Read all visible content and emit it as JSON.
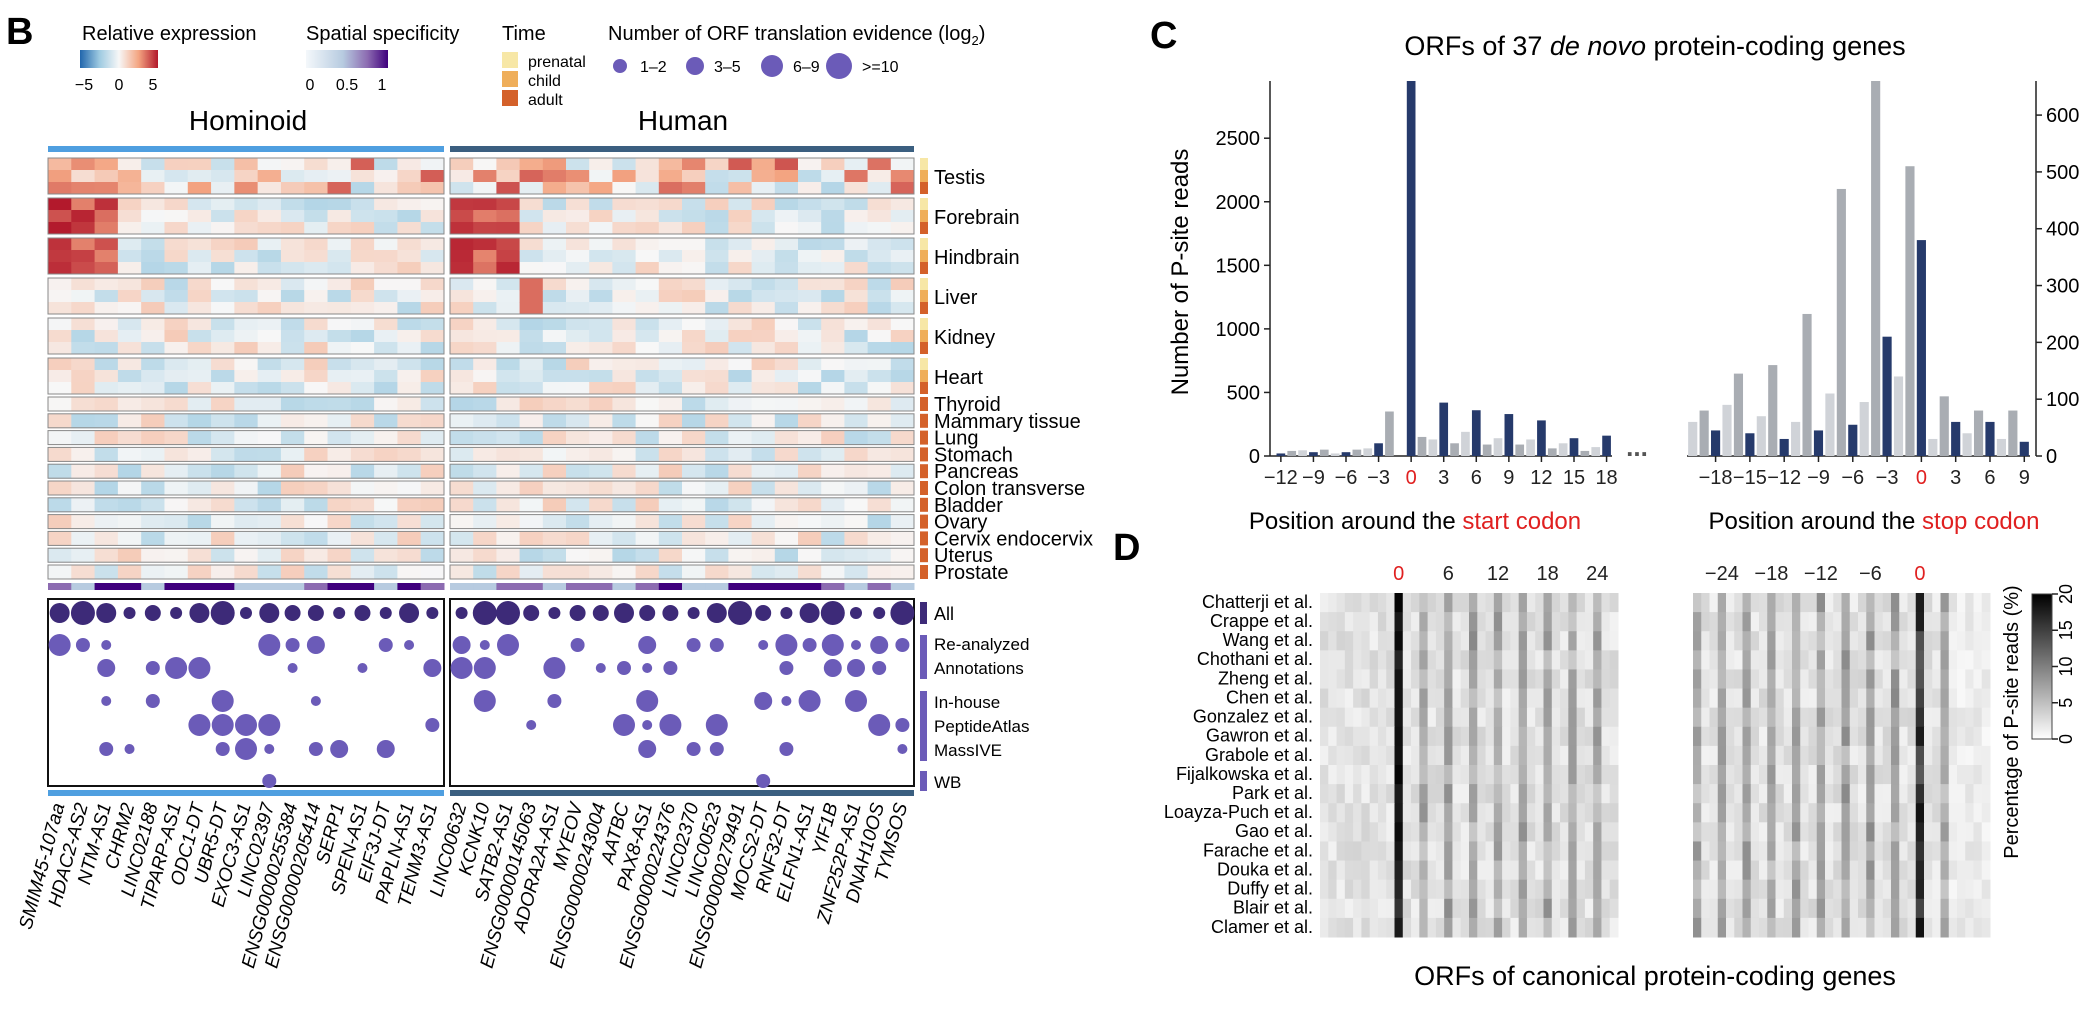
{
  "panels": {
    "B": "B",
    "C": "C",
    "D": "D"
  },
  "legend": {
    "rel_expr": {
      "title": "Relative expression",
      "ticks": [
        "−5",
        "0",
        "5"
      ]
    },
    "spatial": {
      "title": "Spatial specificity",
      "ticks": [
        "0",
        "0.5",
        "1"
      ]
    },
    "time": {
      "title": "Time",
      "items": [
        {
          "label": "prenatal",
          "color": "#f7e7a6"
        },
        {
          "label": "child",
          "color": "#efae5a"
        },
        {
          "label": "adult",
          "color": "#d4612a"
        }
      ]
    },
    "orf": {
      "title": "Number of ORF translation evidence (log",
      "sub": "2",
      "close": ")",
      "sizes": [
        "1–2",
        "3–5",
        "6–9",
        ">=10"
      ]
    }
  },
  "panel_b": {
    "group_labels": [
      "Hominoid",
      "Human"
    ],
    "genes_hominoid": [
      "SMIM45-107aa",
      "HDAC2-AS2",
      "NTM-AS1",
      "CHRM2",
      "LINC02188",
      "TIPARP-AS1",
      "ODC1-DT",
      "UBR5-DT",
      "EXOC3-AS1",
      "LINC02397",
      "ENSG00000255384",
      "ENSG00000205414",
      "SERP1",
      "SPEN-AS1",
      "EIF3J-DT",
      "PAPLN-AS1",
      "TENM3-AS1"
    ],
    "genes_human": [
      "LINC00632",
      "KCNK10",
      "SATB2-AS1",
      "ENSG00000145063",
      "ADORA2A-AS1",
      "MYEOV",
      "ENSG00000243004",
      "AATBC",
      "PAX8-AS1",
      "ENSG00000224376",
      "LINC02370",
      "LINC00523",
      "ENSG00000279491",
      "MOCS2-DT",
      "RNF32-DT",
      "ELFN1-AS1",
      "YIF1B",
      "ZNF252P-AS1",
      "DNAH10OS",
      "TYMSOS"
    ],
    "tissues_multi": [
      "Testis",
      "Forebrain",
      "Hindbrain",
      "Liver",
      "Kidney",
      "Heart"
    ],
    "tissues_single": [
      "Thyroid",
      "Mammary tissue",
      "Lung",
      "Stomach",
      "Pancreas",
      "Colon transverse",
      "Bladder",
      "Ovary",
      "Cervix endocervix",
      "Uterus",
      "Prostate"
    ],
    "evidence_labels": {
      "all": "All",
      "reanalyzed": [
        "Re-analyzed",
        "Annotations"
      ],
      "peptide": [
        "In-house",
        "PeptideAtlas",
        "MassIVE"
      ],
      "wb": "WB"
    },
    "colors": {
      "hominoid_bar": "#4f9fe0",
      "human_bar": "#3b5f80",
      "dot": "#6b5bb8",
      "dot_dark": "#3d2a78"
    }
  },
  "chart_data": [
    {
      "type": "bar",
      "title_pre": "ORFs of 37 ",
      "title_italic": "de novo",
      "title_post": " protein-coding genes",
      "ylabel": "Number of P-site reads",
      "start_panel": {
        "xlabel_pre": "Position around the ",
        "xlabel_hl": "start codon",
        "x": [
          -13,
          -12,
          -11,
          -10,
          -9,
          -8,
          -7,
          -6,
          -5,
          -4,
          -3,
          -2,
          -1,
          0,
          1,
          2,
          3,
          4,
          5,
          6,
          7,
          8,
          9,
          10,
          11,
          12,
          13,
          14,
          15,
          16,
          17,
          18
        ],
        "frame": [
          0,
          1,
          2,
          0,
          1,
          2,
          0,
          1,
          2,
          0,
          1,
          2,
          0,
          1,
          2,
          0,
          1,
          2,
          0,
          1,
          2,
          0,
          1,
          2,
          0,
          1,
          2,
          0,
          1,
          2,
          0,
          1
        ],
        "values": [
          0,
          20,
          40,
          45,
          30,
          50,
          20,
          30,
          50,
          60,
          100,
          350,
          0,
          2950,
          150,
          130,
          420,
          100,
          190,
          360,
          90,
          140,
          330,
          90,
          130,
          280,
          60,
          100,
          140,
          40,
          70,
          160
        ],
        "xticks": [
          -12,
          -9,
          -6,
          -3,
          0,
          3,
          6,
          9,
          12,
          15,
          18
        ],
        "yticks": [
          0,
          500,
          1000,
          1500,
          2000,
          2500
        ],
        "ylim": [
          0,
          2950
        ]
      },
      "stop_panel": {
        "xlabel_pre": "Position around the ",
        "xlabel_hl": "stop codon",
        "x": [
          -20,
          -19,
          -18,
          -17,
          -16,
          -15,
          -14,
          -13,
          -12,
          -11,
          -10,
          -9,
          -8,
          -7,
          -6,
          -5,
          -4,
          -3,
          -2,
          -1,
          0,
          1,
          2,
          3,
          4,
          5,
          6,
          7,
          8,
          9
        ],
        "frame": [
          0,
          1,
          2,
          0,
          1,
          2,
          0,
          1,
          2,
          0,
          1,
          2,
          0,
          1,
          2,
          0,
          1,
          2,
          0,
          1,
          2,
          0,
          1,
          2,
          0,
          1,
          2,
          0,
          1,
          2
        ],
        "values": [
          60,
          80,
          45,
          90,
          145,
          40,
          70,
          160,
          30,
          60,
          250,
          45,
          110,
          470,
          55,
          95,
          660,
          210,
          140,
          510,
          380,
          30,
          105,
          60,
          40,
          80,
          60,
          30,
          80,
          25
        ],
        "xticks": [
          -18,
          -15,
          -12,
          -9,
          -6,
          -3,
          0,
          3,
          6,
          9
        ],
        "yticks": [
          0,
          100,
          200,
          300,
          400,
          500,
          600
        ],
        "ylim": [
          0,
          660
        ]
      },
      "frame_colors": [
        "#d0d3d8",
        "#a9adb3",
        "#263a6b"
      ],
      "highlight_color": "#e02020",
      "break_mark": "..."
    },
    {
      "type": "heatmap",
      "studies": [
        "Chatterji et al.",
        "Crappe et al.",
        "Wang et al.",
        "Chothani et al.",
        "Zheng et al.",
        "Chen et al.",
        "Gonzalez et al.",
        "Gawron et al.",
        "Grabole et al.",
        "Fijalkowska et al.",
        "Park et al.",
        "Loayza-Puch et al.",
        "Gao et al.",
        "Farache et al.",
        "Douka et al.",
        "Duffy et al.",
        "Blair et al.",
        "Clamer et al."
      ],
      "start_xticks": [
        "0",
        "6",
        "12",
        "18",
        "24"
      ],
      "stop_xticks": [
        "−24",
        "−18",
        "−12",
        "−6",
        "0"
      ],
      "start_positions": [
        -9,
        27
      ],
      "stop_positions": [
        -30,
        6
      ],
      "colorbar": {
        "label": "Percentage of P-site reads (%)",
        "ticks": [
          "0",
          "5",
          "10",
          "15",
          "20"
        ],
        "range": [
          0,
          20
        ]
      },
      "bottom_title": "ORFs of canonical protein-coding genes",
      "break_mark": "..."
    }
  ]
}
